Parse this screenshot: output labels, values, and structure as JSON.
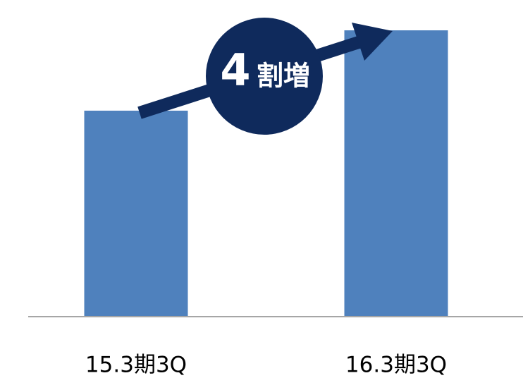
{
  "chart_data": {
    "type": "bar",
    "categories": [
      "15.3期3Q",
      "16.3期3Q"
    ],
    "values": [
      100,
      139
    ],
    "color": "#4f81bd",
    "ylim": [
      0,
      139
    ],
    "annotation": {
      "lead": "4",
      "rest": "割増"
    }
  }
}
